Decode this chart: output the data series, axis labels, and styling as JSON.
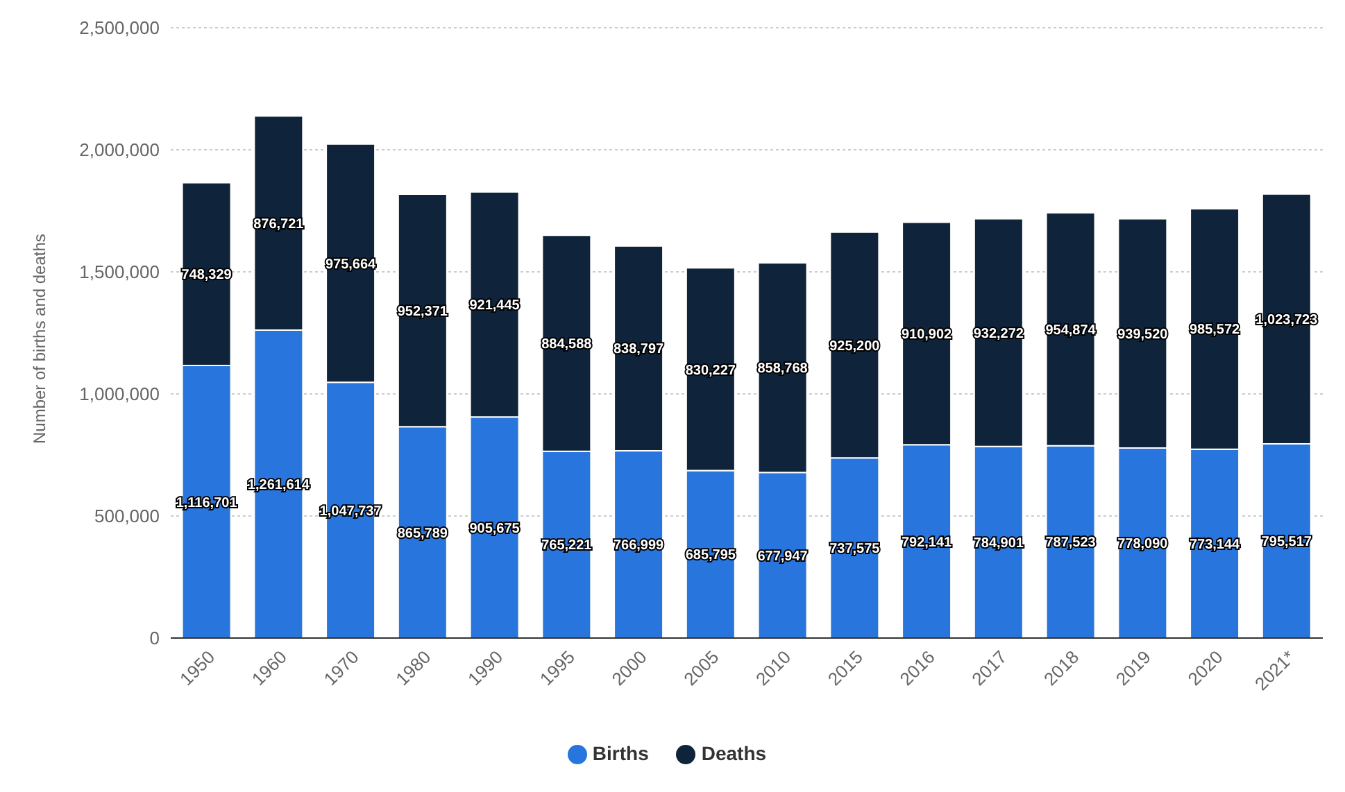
{
  "chart_data": {
    "type": "bar",
    "stacked": true,
    "ylabel": "Number of births and deaths",
    "categories": [
      "1950",
      "1960",
      "1970",
      "1980",
      "1990",
      "1995",
      "2000",
      "2005",
      "2010",
      "2015",
      "2016",
      "2017",
      "2018",
      "2019",
      "2020",
      "2021*"
    ],
    "series": [
      {
        "name": "Births",
        "color": "#2876dd",
        "values": [
          1116701,
          1261614,
          1047737,
          865789,
          905675,
          765221,
          766999,
          685795,
          677947,
          737575,
          792141,
          784901,
          787523,
          778090,
          773144,
          795517
        ],
        "value_labels": [
          "1,116,701",
          "1,261,614",
          "1,047,737",
          "865,789",
          "905,675",
          "765,221",
          "766,999",
          "685,795",
          "677,947",
          "737,575",
          "792,141",
          "784,901",
          "787,523",
          "778,090",
          "773,144",
          "795,517"
        ]
      },
      {
        "name": "Deaths",
        "color": "#0f243b",
        "values": [
          748329,
          876721,
          975664,
          952371,
          921445,
          884588,
          838797,
          830227,
          858768,
          925200,
          910902,
          932272,
          954874,
          939520,
          985572,
          1023723
        ],
        "value_labels": [
          "748,329",
          "876,721",
          "975,664",
          "952,371",
          "921,445",
          "884,588",
          "838,797",
          "830,227",
          "858,768",
          "925,200",
          "910,902",
          "932,272",
          "954,874",
          "939,520",
          "985,572",
          "1,023,723"
        ]
      }
    ],
    "ylim": [
      0,
      2500000
    ],
    "yticks": [
      0,
      {
        "value": 500000,
        "label": "500,000"
      },
      {
        "value": 1000000,
        "label": "1,000,000"
      },
      {
        "value": 1500000,
        "label": "1,500,000"
      },
      {
        "value": 2000000,
        "label": "2,000,000"
      },
      {
        "value": 2500000,
        "label": "2,500,000"
      }
    ],
    "grid": "y",
    "legend": "bottom"
  }
}
